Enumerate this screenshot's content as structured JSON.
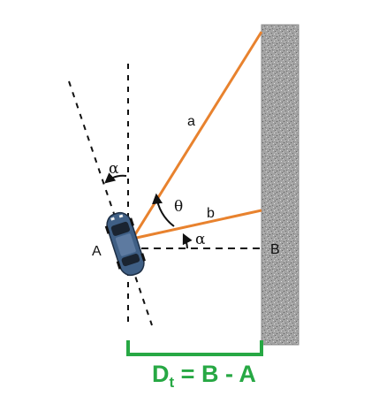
{
  "labels": {
    "point_a": "A",
    "point_b": "B",
    "ray_a": "a",
    "ray_b": "b",
    "theta": "θ",
    "alpha_top": "α",
    "alpha_bottom": "α"
  },
  "formula": {
    "lhs": "D",
    "subscript": "t",
    "rhs": " = B - A"
  },
  "colors": {
    "rays": "#e8822e",
    "bracket": "#27a844",
    "formula_text": "#27a844",
    "wall": "#9a9a9a",
    "car_body": "#3f5f85",
    "dashes": "#111111"
  },
  "icons": {
    "car": "car-top-view-icon",
    "wall": "concrete-wall-texture"
  }
}
